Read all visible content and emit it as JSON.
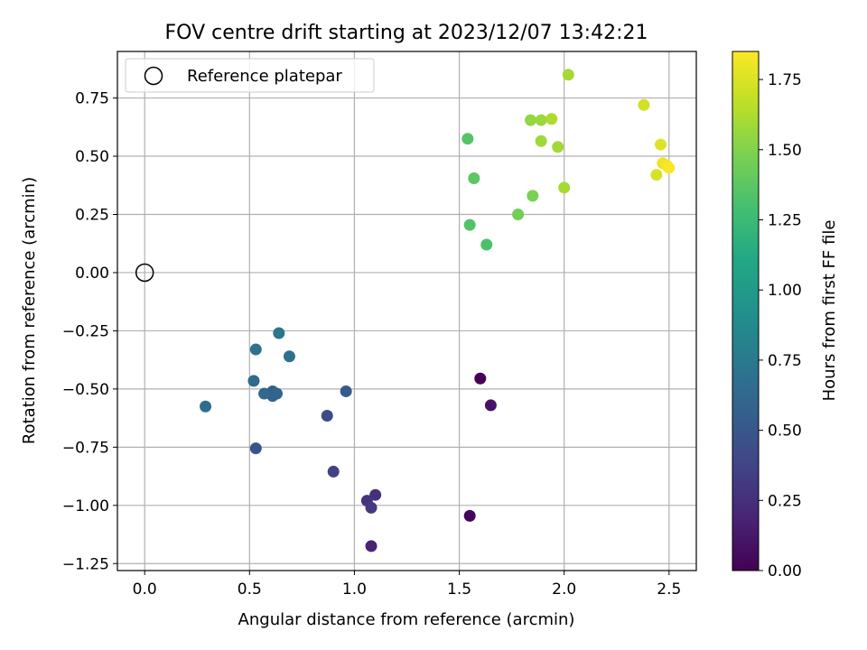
{
  "chart_data": {
    "type": "scatter",
    "title": "FOV centre drift starting at 2023/12/07 13:42:21",
    "xlabel": "Angular distance from reference (arcmin)",
    "ylabel": "Rotation from reference (arcmin)",
    "xlim": [
      -0.13,
      2.63
    ],
    "ylim": [
      -1.28,
      0.95
    ],
    "xticks": [
      0.0,
      0.5,
      1.0,
      1.5,
      2.0,
      2.5
    ],
    "xtick_labels": [
      "0.0",
      "0.5",
      "1.0",
      "1.5",
      "2.0",
      "2.5"
    ],
    "yticks": [
      0.75,
      0.5,
      0.25,
      0.0,
      -0.25,
      -0.5,
      -0.75,
      -1.0,
      -1.25
    ],
    "ytick_labels": [
      "0.75",
      "0.50",
      "0.25",
      "0.00",
      "−0.25",
      "−0.50",
      "−0.75",
      "−1.00",
      "−1.25"
    ],
    "grid": true,
    "legend": {
      "placement": "top-left",
      "entries": [
        {
          "label": "Reference platepar",
          "marker": "open-circle"
        }
      ]
    },
    "reference_point": {
      "x": 0.0,
      "y": 0.0
    },
    "colorbar": {
      "label": "Hours from first FF file",
      "colormap": "viridis",
      "range": [
        0.0,
        1.85
      ],
      "ticks": [
        0.0,
        0.25,
        0.5,
        0.75,
        1.0,
        1.25,
        1.5,
        1.75
      ],
      "tick_labels": [
        "0.00",
        "0.25",
        "0.50",
        "0.75",
        "1.00",
        "1.25",
        "1.50",
        "1.75"
      ]
    },
    "points": [
      {
        "x": 1.6,
        "y": -0.455,
        "hours": 0.0
      },
      {
        "x": 1.55,
        "y": -1.045,
        "hours": 0.03
      },
      {
        "x": 1.65,
        "y": -0.57,
        "hours": 0.1
      },
      {
        "x": 1.08,
        "y": -1.175,
        "hours": 0.18
      },
      {
        "x": 1.1,
        "y": -0.955,
        "hours": 0.25
      },
      {
        "x": 1.06,
        "y": -0.98,
        "hours": 0.27
      },
      {
        "x": 1.08,
        "y": -1.01,
        "hours": 0.3
      },
      {
        "x": 0.9,
        "y": -0.855,
        "hours": 0.35
      },
      {
        "x": 0.87,
        "y": -0.615,
        "hours": 0.42
      },
      {
        "x": 0.53,
        "y": -0.755,
        "hours": 0.48
      },
      {
        "x": 0.96,
        "y": -0.51,
        "hours": 0.52
      },
      {
        "x": 0.61,
        "y": -0.51,
        "hours": 0.56
      },
      {
        "x": 0.61,
        "y": -0.53,
        "hours": 0.58
      },
      {
        "x": 0.63,
        "y": -0.52,
        "hours": 0.6
      },
      {
        "x": 0.57,
        "y": -0.52,
        "hours": 0.62
      },
      {
        "x": 0.52,
        "y": -0.465,
        "hours": 0.64
      },
      {
        "x": 0.29,
        "y": -0.575,
        "hours": 0.66
      },
      {
        "x": 0.69,
        "y": -0.36,
        "hours": 0.68
      },
      {
        "x": 0.53,
        "y": -0.33,
        "hours": 0.7
      },
      {
        "x": 0.64,
        "y": -0.26,
        "hours": 0.72
      },
      {
        "x": 1.63,
        "y": 0.12,
        "hours": 1.32
      },
      {
        "x": 1.55,
        "y": 0.205,
        "hours": 1.34
      },
      {
        "x": 1.54,
        "y": 0.575,
        "hours": 1.35
      },
      {
        "x": 1.57,
        "y": 0.405,
        "hours": 1.38
      },
      {
        "x": 1.78,
        "y": 0.25,
        "hours": 1.45
      },
      {
        "x": 1.85,
        "y": 0.33,
        "hours": 1.48
      },
      {
        "x": 1.84,
        "y": 0.655,
        "hours": 1.55
      },
      {
        "x": 1.89,
        "y": 0.655,
        "hours": 1.57
      },
      {
        "x": 1.89,
        "y": 0.565,
        "hours": 1.58
      },
      {
        "x": 1.97,
        "y": 0.54,
        "hours": 1.59
      },
      {
        "x": 2.0,
        "y": 0.365,
        "hours": 1.6
      },
      {
        "x": 1.94,
        "y": 0.66,
        "hours": 1.62
      },
      {
        "x": 2.02,
        "y": 0.85,
        "hours": 1.6
      },
      {
        "x": 2.38,
        "y": 0.72,
        "hours": 1.72
      },
      {
        "x": 2.44,
        "y": 0.42,
        "hours": 1.74
      },
      {
        "x": 2.46,
        "y": 0.55,
        "hours": 1.76
      },
      {
        "x": 2.47,
        "y": 0.47,
        "hours": 1.8
      },
      {
        "x": 2.49,
        "y": 0.46,
        "hours": 1.82
      },
      {
        "x": 2.5,
        "y": 0.45,
        "hours": 1.84
      }
    ]
  }
}
